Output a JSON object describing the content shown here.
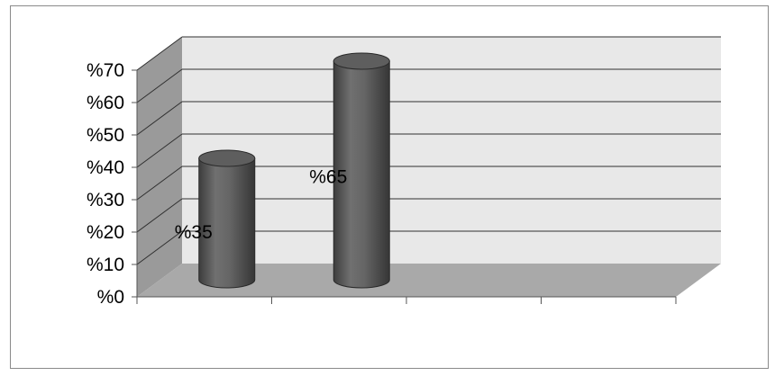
{
  "chart_data": {
    "type": "bar",
    "style": "3d-cylinder",
    "categories": [
      "",
      "",
      "",
      ""
    ],
    "values": [
      35,
      65,
      null,
      null
    ],
    "data_labels": [
      "%35",
      "%65",
      "",
      ""
    ],
    "ylim": [
      0,
      70
    ],
    "y_ticks": [
      0,
      10,
      20,
      30,
      40,
      50,
      60,
      70
    ],
    "y_tick_labels": [
      "%0",
      "%10",
      "%20",
      "%30",
      "%40",
      "%50",
      "%60",
      "%70"
    ],
    "grid": true,
    "legend": "none",
    "colors": {
      "bar": "#5e5e5e",
      "back_wall": "#e8e8e8",
      "side_wall": "#9a9a9a",
      "floor": "#a9a9a9",
      "gridline": "#2f2f2f"
    }
  }
}
